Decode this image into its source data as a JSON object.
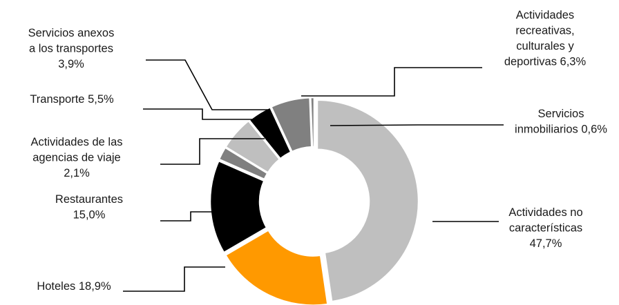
{
  "chart_data": {
    "type": "pie",
    "variant": "donut",
    "unit": "%",
    "slices": [
      {
        "key": "no_caracteristicas",
        "label": [
          "Actividades no",
          "características",
          "47,7%"
        ],
        "value": 47.7,
        "color": "#bfbfbf"
      },
      {
        "key": "hoteles",
        "label": [
          "Hoteles 18,9%"
        ],
        "value": 18.9,
        "color": "#ff9900"
      },
      {
        "key": "restaurantes",
        "label": [
          "Restaurantes",
          "15,0%"
        ],
        "value": 15.0,
        "color": "#000000"
      },
      {
        "key": "agencias",
        "label": [
          "Actividades de las",
          "agencias de viaje",
          "2,1%"
        ],
        "value": 2.1,
        "color": "#808080"
      },
      {
        "key": "transporte",
        "label": [
          "Transporte  5,5%"
        ],
        "value": 5.5,
        "color": "#bfbfbf"
      },
      {
        "key": "anexos",
        "label": [
          "Servicios anexos",
          "a los transportes",
          "3,9%"
        ],
        "value": 3.9,
        "color": "#000000"
      },
      {
        "key": "recreativas",
        "label": [
          "Actividades",
          "recreativas,",
          "culturales y",
          "deportivas 6,3%"
        ],
        "value": 6.3,
        "color": "#808080"
      },
      {
        "key": "inmobiliarios",
        "label": [
          "Servicios",
          "inmobiliarios 0,6%"
        ],
        "value": 0.6,
        "color": "#808080"
      }
    ],
    "legend": "none"
  }
}
